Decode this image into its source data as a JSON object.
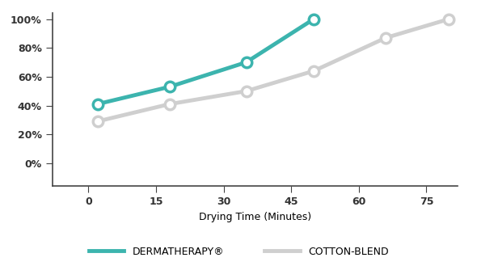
{
  "chart_data": {
    "type": "line",
    "x_label": "Drying Time (Minutes)",
    "xlim": [
      -8,
      82
    ],
    "xticks": [
      0,
      15,
      30,
      45,
      60,
      75
    ],
    "ylim": [
      -16,
      104
    ],
    "yticks": [
      {
        "value": 0,
        "label": "0%"
      },
      {
        "value": 20,
        "label": "20%"
      },
      {
        "value": 40,
        "label": "40%"
      },
      {
        "value": 60,
        "label": "60%"
      },
      {
        "value": 80,
        "label": "80%"
      },
      {
        "value": 100,
        "label": "100%"
      }
    ],
    "grid": false,
    "legend": "lower center",
    "series": [
      {
        "name": "DERMATHERAPY®",
        "color": "#3cb4ae",
        "marker": "o",
        "line_style": "solid",
        "x": [
          2,
          18,
          35,
          50
        ],
        "values": [
          41,
          53,
          70,
          100
        ]
      },
      {
        "name": "COTTON-BLEND",
        "color": "#cfcfcf",
        "marker": "o",
        "line_style": "solid",
        "x": [
          2,
          18,
          35,
          50,
          66,
          80
        ],
        "values": [
          29,
          41,
          50,
          64,
          87,
          100
        ]
      }
    ]
  }
}
